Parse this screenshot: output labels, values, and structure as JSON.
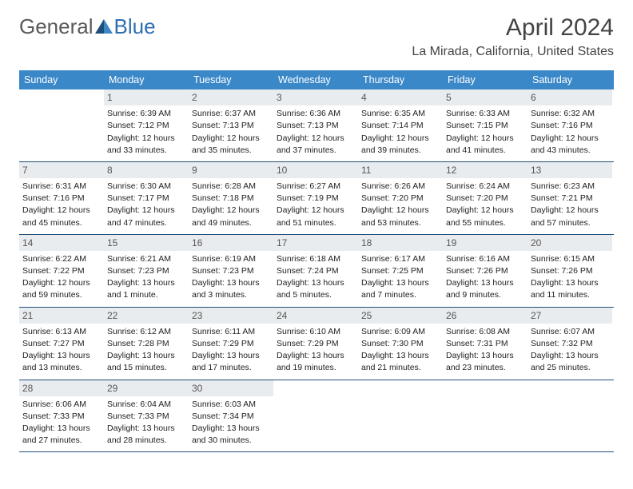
{
  "brand": {
    "general": "General",
    "blue": "Blue"
  },
  "colors": {
    "header_bg": "#3b88c9",
    "header_text": "#ffffff",
    "daynum_bg": "#e9ecef",
    "daynum_text": "#555555",
    "rule": "#1f4e79",
    "logo_gray": "#5a5a5a",
    "logo_blue": "#2f6fb0",
    "body_text": "#222222"
  },
  "title": "April 2024",
  "location": "La Mirada, California, United States",
  "day_names": [
    "Sunday",
    "Monday",
    "Tuesday",
    "Wednesday",
    "Thursday",
    "Friday",
    "Saturday"
  ],
  "weeks": [
    [
      null,
      {
        "n": "1",
        "sr": "Sunrise: 6:39 AM",
        "ss": "Sunset: 7:12 PM",
        "d1": "Daylight: 12 hours",
        "d2": "and 33 minutes."
      },
      {
        "n": "2",
        "sr": "Sunrise: 6:37 AM",
        "ss": "Sunset: 7:13 PM",
        "d1": "Daylight: 12 hours",
        "d2": "and 35 minutes."
      },
      {
        "n": "3",
        "sr": "Sunrise: 6:36 AM",
        "ss": "Sunset: 7:13 PM",
        "d1": "Daylight: 12 hours",
        "d2": "and 37 minutes."
      },
      {
        "n": "4",
        "sr": "Sunrise: 6:35 AM",
        "ss": "Sunset: 7:14 PM",
        "d1": "Daylight: 12 hours",
        "d2": "and 39 minutes."
      },
      {
        "n": "5",
        "sr": "Sunrise: 6:33 AM",
        "ss": "Sunset: 7:15 PM",
        "d1": "Daylight: 12 hours",
        "d2": "and 41 minutes."
      },
      {
        "n": "6",
        "sr": "Sunrise: 6:32 AM",
        "ss": "Sunset: 7:16 PM",
        "d1": "Daylight: 12 hours",
        "d2": "and 43 minutes."
      }
    ],
    [
      {
        "n": "7",
        "sr": "Sunrise: 6:31 AM",
        "ss": "Sunset: 7:16 PM",
        "d1": "Daylight: 12 hours",
        "d2": "and 45 minutes."
      },
      {
        "n": "8",
        "sr": "Sunrise: 6:30 AM",
        "ss": "Sunset: 7:17 PM",
        "d1": "Daylight: 12 hours",
        "d2": "and 47 minutes."
      },
      {
        "n": "9",
        "sr": "Sunrise: 6:28 AM",
        "ss": "Sunset: 7:18 PM",
        "d1": "Daylight: 12 hours",
        "d2": "and 49 minutes."
      },
      {
        "n": "10",
        "sr": "Sunrise: 6:27 AM",
        "ss": "Sunset: 7:19 PM",
        "d1": "Daylight: 12 hours",
        "d2": "and 51 minutes."
      },
      {
        "n": "11",
        "sr": "Sunrise: 6:26 AM",
        "ss": "Sunset: 7:20 PM",
        "d1": "Daylight: 12 hours",
        "d2": "and 53 minutes."
      },
      {
        "n": "12",
        "sr": "Sunrise: 6:24 AM",
        "ss": "Sunset: 7:20 PM",
        "d1": "Daylight: 12 hours",
        "d2": "and 55 minutes."
      },
      {
        "n": "13",
        "sr": "Sunrise: 6:23 AM",
        "ss": "Sunset: 7:21 PM",
        "d1": "Daylight: 12 hours",
        "d2": "and 57 minutes."
      }
    ],
    [
      {
        "n": "14",
        "sr": "Sunrise: 6:22 AM",
        "ss": "Sunset: 7:22 PM",
        "d1": "Daylight: 12 hours",
        "d2": "and 59 minutes."
      },
      {
        "n": "15",
        "sr": "Sunrise: 6:21 AM",
        "ss": "Sunset: 7:23 PM",
        "d1": "Daylight: 13 hours",
        "d2": "and 1 minute."
      },
      {
        "n": "16",
        "sr": "Sunrise: 6:19 AM",
        "ss": "Sunset: 7:23 PM",
        "d1": "Daylight: 13 hours",
        "d2": "and 3 minutes."
      },
      {
        "n": "17",
        "sr": "Sunrise: 6:18 AM",
        "ss": "Sunset: 7:24 PM",
        "d1": "Daylight: 13 hours",
        "d2": "and 5 minutes."
      },
      {
        "n": "18",
        "sr": "Sunrise: 6:17 AM",
        "ss": "Sunset: 7:25 PM",
        "d1": "Daylight: 13 hours",
        "d2": "and 7 minutes."
      },
      {
        "n": "19",
        "sr": "Sunrise: 6:16 AM",
        "ss": "Sunset: 7:26 PM",
        "d1": "Daylight: 13 hours",
        "d2": "and 9 minutes."
      },
      {
        "n": "20",
        "sr": "Sunrise: 6:15 AM",
        "ss": "Sunset: 7:26 PM",
        "d1": "Daylight: 13 hours",
        "d2": "and 11 minutes."
      }
    ],
    [
      {
        "n": "21",
        "sr": "Sunrise: 6:13 AM",
        "ss": "Sunset: 7:27 PM",
        "d1": "Daylight: 13 hours",
        "d2": "and 13 minutes."
      },
      {
        "n": "22",
        "sr": "Sunrise: 6:12 AM",
        "ss": "Sunset: 7:28 PM",
        "d1": "Daylight: 13 hours",
        "d2": "and 15 minutes."
      },
      {
        "n": "23",
        "sr": "Sunrise: 6:11 AM",
        "ss": "Sunset: 7:29 PM",
        "d1": "Daylight: 13 hours",
        "d2": "and 17 minutes."
      },
      {
        "n": "24",
        "sr": "Sunrise: 6:10 AM",
        "ss": "Sunset: 7:29 PM",
        "d1": "Daylight: 13 hours",
        "d2": "and 19 minutes."
      },
      {
        "n": "25",
        "sr": "Sunrise: 6:09 AM",
        "ss": "Sunset: 7:30 PM",
        "d1": "Daylight: 13 hours",
        "d2": "and 21 minutes."
      },
      {
        "n": "26",
        "sr": "Sunrise: 6:08 AM",
        "ss": "Sunset: 7:31 PM",
        "d1": "Daylight: 13 hours",
        "d2": "and 23 minutes."
      },
      {
        "n": "27",
        "sr": "Sunrise: 6:07 AM",
        "ss": "Sunset: 7:32 PM",
        "d1": "Daylight: 13 hours",
        "d2": "and 25 minutes."
      }
    ],
    [
      {
        "n": "28",
        "sr": "Sunrise: 6:06 AM",
        "ss": "Sunset: 7:33 PM",
        "d1": "Daylight: 13 hours",
        "d2": "and 27 minutes."
      },
      {
        "n": "29",
        "sr": "Sunrise: 6:04 AM",
        "ss": "Sunset: 7:33 PM",
        "d1": "Daylight: 13 hours",
        "d2": "and 28 minutes."
      },
      {
        "n": "30",
        "sr": "Sunrise: 6:03 AM",
        "ss": "Sunset: 7:34 PM",
        "d1": "Daylight: 13 hours",
        "d2": "and 30 minutes."
      },
      null,
      null,
      null,
      null
    ]
  ]
}
